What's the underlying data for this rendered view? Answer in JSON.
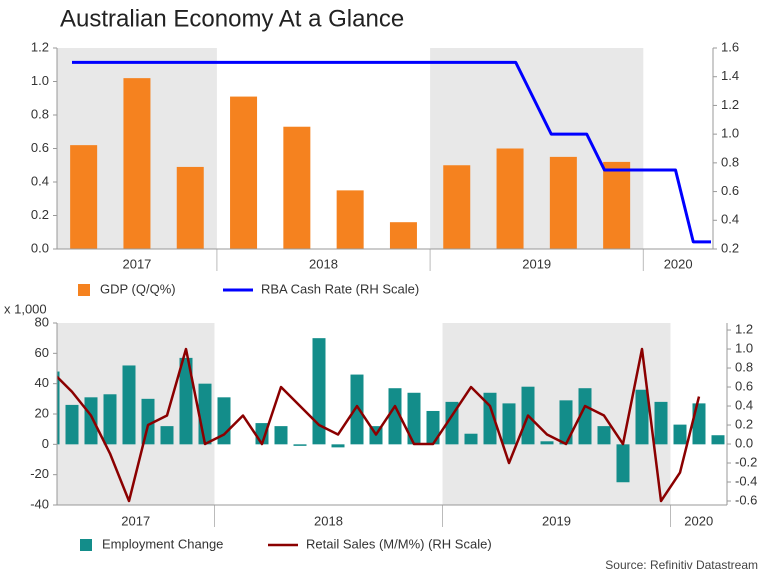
{
  "header": {
    "title": "Australian Economy At a Glance",
    "source": "Source: Refinitiv Datastream"
  },
  "chart_data": [
    {
      "type": "bar",
      "groups": [
        {
          "label": "2017",
          "count": 3,
          "shaded": true
        },
        {
          "label": "2018",
          "count": 4,
          "shaded": false
        },
        {
          "label": "2019",
          "count": 4,
          "shaded": true
        },
        {
          "label": "2020",
          "count": 1,
          "shaded": false
        }
      ],
      "series": [
        {
          "name": "GDP (Q/Q%)",
          "color": "#f5821f",
          "type": "bar",
          "values": [
            0.62,
            1.02,
            0.49,
            0.91,
            0.73,
            0.35,
            0.16,
            0.5,
            0.6,
            0.55,
            0.52,
            null
          ]
        },
        {
          "name": "RBA Cash Rate (RH Scale)",
          "color": "#0000ff",
          "type": "line",
          "axis": "y2",
          "values": [
            1.5,
            1.5,
            1.5,
            1.5,
            1.5,
            1.5,
            1.5,
            1.5,
            1.5,
            1.5,
            1.5,
            1.5,
            1.5,
            1.5,
            1.5,
            1.5,
            1.5,
            1.5,
            1.5,
            1.5,
            1.5,
            1.5,
            1.5,
            1.5,
            1.5,
            1.5,
            1.25,
            1.0,
            1.0,
            1.0,
            0.75,
            0.75,
            0.75,
            0.75,
            0.75,
            0.25,
            0.25
          ]
        }
      ],
      "ylim": [
        0,
        1.2
      ],
      "yticks": [
        {
          "value": 0,
          "label": "0.0"
        },
        0.2,
        0.4,
        0.6,
        0.8,
        {
          "value": 1,
          "label": "1.0"
        },
        1.2
      ],
      "y2lim": [
        0.2,
        1.6
      ],
      "y2ticks": [
        0.2,
        0.4,
        0.6,
        0.8,
        {
          "value": 1,
          "label": "1.0"
        },
        1.2,
        1.4,
        1.6
      ],
      "grid": false
    },
    {
      "type": "bar",
      "y_label": "x 1,000",
      "groups": [
        {
          "label": "2017",
          "count": 9,
          "shaded": true
        },
        {
          "label": "2018",
          "count": 12,
          "shaded": false
        },
        {
          "label": "2019",
          "count": 12,
          "shaded": true
        },
        {
          "label": "2020",
          "count": 3,
          "shaded": false
        }
      ],
      "series": [
        {
          "name": "Employment Change",
          "color": "#138d8a",
          "type": "bar",
          "values": [
            48,
            26,
            31,
            33,
            52,
            30,
            12,
            57,
            40,
            31,
            0,
            14,
            12,
            -1,
            70,
            -2,
            46,
            12,
            37,
            34,
            22,
            28,
            7,
            34,
            27,
            38,
            2,
            29,
            37,
            12,
            -25,
            36,
            28,
            13,
            27,
            6
          ]
        },
        {
          "name": "Retail Sales (M/M%) (RH Scale)",
          "color": "#8b0000",
          "type": "line",
          "axis": "y2",
          "values": [
            0.75,
            0.55,
            0.3,
            -0.1,
            -0.6,
            0.2,
            0.3,
            1.0,
            0.0,
            0.1,
            0.3,
            0.0,
            0.6,
            0.4,
            0.2,
            0.1,
            0.4,
            0.1,
            0.4,
            0.0,
            0.0,
            0.3,
            0.6,
            0.4,
            -0.2,
            0.3,
            0.1,
            0.0,
            0.4,
            0.3,
            0.0,
            1.0,
            -0.6,
            -0.3,
            0.5,
            null
          ]
        }
      ],
      "ylim": [
        -40,
        80
      ],
      "yticks": [
        -40,
        -20,
        0,
        20,
        40,
        60,
        80
      ],
      "y2lim": [
        -0.642,
        1.274
      ],
      "y2ticks": [
        -0.6,
        -0.4,
        -0.2,
        {
          "value": 0,
          "label": "0.0"
        },
        0.2,
        0.4,
        0.6,
        0.8,
        {
          "value": 1,
          "label": "1.0"
        },
        1.2
      ],
      "grid": false
    }
  ]
}
